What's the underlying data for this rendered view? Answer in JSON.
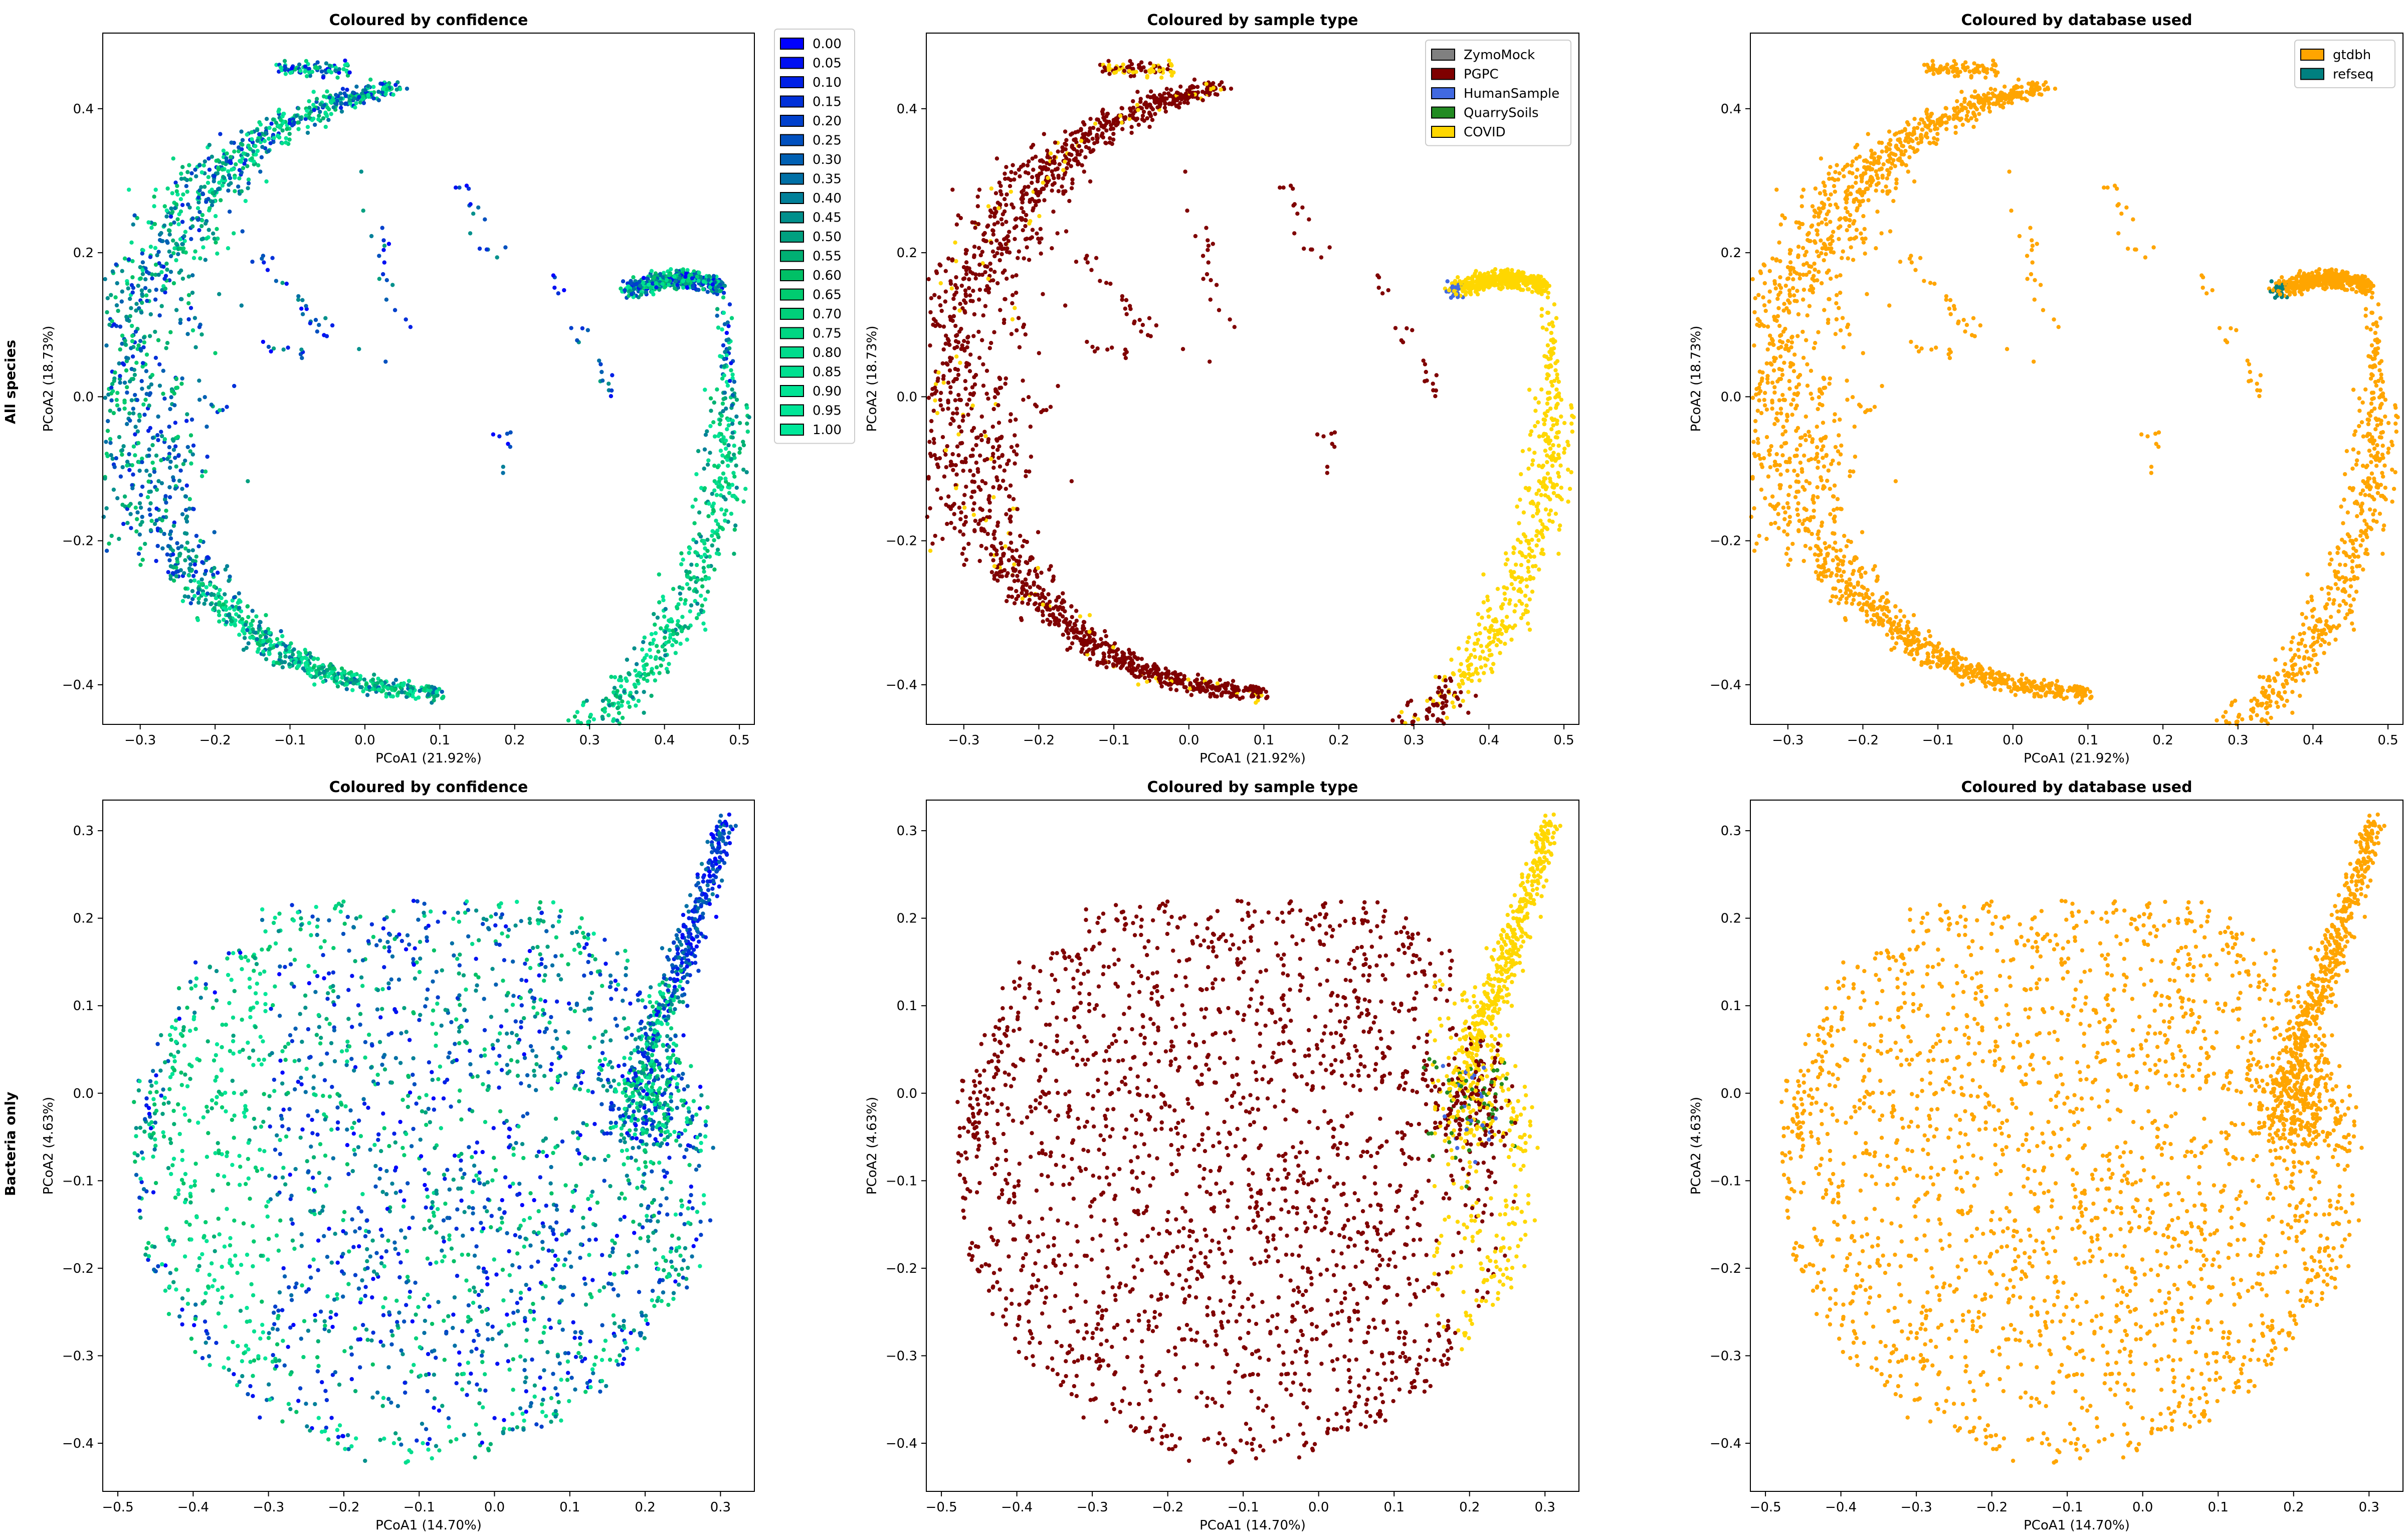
{
  "figure": {
    "row_labels": [
      "All species",
      "Bacteria only"
    ]
  },
  "legends": {
    "confidence": {
      "labels": [
        "0.00",
        "0.05",
        "0.10",
        "0.15",
        "0.20",
        "0.25",
        "0.30",
        "0.35",
        "0.40",
        "0.45",
        "0.50",
        "0.55",
        "0.60",
        "0.65",
        "0.70",
        "0.75",
        "0.80",
        "0.85",
        "0.90",
        "0.95",
        "1.00"
      ],
      "colors": [
        "#0000ff",
        "#0010f2",
        "#0020e6",
        "#0030d9",
        "#0040cc",
        "#0050bf",
        "#0060b3",
        "#0070a6",
        "#008099",
        "#00908c",
        "#00a080",
        "#00b073",
        "#00c066",
        "#00cc70",
        "#00d07a",
        "#00d683",
        "#00dc8c",
        "#00e090",
        "#00e394",
        "#00e697",
        "#00e89a"
      ]
    },
    "sample_type": {
      "labels": [
        "ZymoMock",
        "PGPC",
        "HumanSample",
        "QuarrySoils",
        "COVID"
      ],
      "colors": [
        "#808080",
        "#7f0000",
        "#4169e1",
        "#228b22",
        "#ffd700"
      ]
    },
    "database": {
      "labels": [
        "gtdbh",
        "refseq"
      ],
      "colors": [
        "#ffa500",
        "#008080"
      ]
    }
  },
  "chart_data": [
    {
      "type": "scatter",
      "row": 0,
      "col": 0,
      "color_by": "confidence",
      "title": "Coloured by confidence",
      "xlabel": "PCoA1 (21.92%)",
      "ylabel": "PCoA2 (18.73%)",
      "xlim": [
        -0.35,
        0.52
      ],
      "ylim": [
        -0.455,
        0.505
      ],
      "xticks": [
        -0.3,
        -0.2,
        -0.1,
        0.0,
        0.1,
        0.2,
        0.3,
        0.4,
        0.5
      ],
      "yticks": [
        -0.4,
        -0.2,
        0.0,
        0.2,
        0.4
      ],
      "xticklabels": [
        "−0.3",
        "−0.2",
        "−0.1",
        "0.0",
        "0.1",
        "0.2",
        "0.3",
        "0.4",
        "0.5"
      ],
      "yticklabels": [
        "−0.4",
        "−0.2",
        "0.0",
        "0.2",
        "0.4"
      ],
      "legend": "confidence",
      "legend_position": "outside-right",
      "grid": false
    },
    {
      "type": "scatter",
      "row": 0,
      "col": 1,
      "color_by": "sample_type",
      "title": "Coloured by sample type",
      "xlabel": "PCoA1 (21.92%)",
      "ylabel": "PCoA2 (18.73%)",
      "xlim": [
        -0.35,
        0.52
      ],
      "ylim": [
        -0.455,
        0.505
      ],
      "xticks": [
        -0.3,
        -0.2,
        -0.1,
        0.0,
        0.1,
        0.2,
        0.3,
        0.4,
        0.5
      ],
      "yticks": [
        -0.4,
        -0.2,
        0.0,
        0.2,
        0.4
      ],
      "xticklabels": [
        "−0.3",
        "−0.2",
        "−0.1",
        "0.0",
        "0.1",
        "0.2",
        "0.3",
        "0.4",
        "0.5"
      ],
      "yticklabels": [
        "−0.4",
        "−0.2",
        "0.0",
        "0.2",
        "0.4"
      ],
      "legend": "sample_type",
      "legend_position": "top-right",
      "grid": false
    },
    {
      "type": "scatter",
      "row": 0,
      "col": 2,
      "color_by": "database",
      "title": "Coloured by database used",
      "xlabel": "PCoA1 (21.92%)",
      "ylabel": "PCoA2 (18.73%)",
      "xlim": [
        -0.35,
        0.52
      ],
      "ylim": [
        -0.455,
        0.505
      ],
      "xticks": [
        -0.3,
        -0.2,
        -0.1,
        0.0,
        0.1,
        0.2,
        0.3,
        0.4,
        0.5
      ],
      "yticks": [
        -0.4,
        -0.2,
        0.0,
        0.2,
        0.4
      ],
      "xticklabels": [
        "−0.3",
        "−0.2",
        "−0.1",
        "0.0",
        "0.1",
        "0.2",
        "0.3",
        "0.4",
        "0.5"
      ],
      "yticklabels": [
        "−0.4",
        "−0.2",
        "0.0",
        "0.2",
        "0.4"
      ],
      "legend": "database",
      "legend_position": "top-right",
      "grid": false
    },
    {
      "type": "scatter",
      "row": 1,
      "col": 0,
      "color_by": "confidence",
      "title": "Coloured by confidence",
      "xlabel": "PCoA1 (14.70%)",
      "ylabel": "PCoA2 (4.63%)",
      "xlim": [
        -0.52,
        0.345
      ],
      "ylim": [
        -0.455,
        0.335
      ],
      "xticks": [
        -0.5,
        -0.4,
        -0.3,
        -0.2,
        -0.1,
        0.0,
        0.1,
        0.2,
        0.3
      ],
      "yticks": [
        -0.4,
        -0.3,
        -0.2,
        -0.1,
        0.0,
        0.1,
        0.2,
        0.3
      ],
      "xticklabels": [
        "−0.5",
        "−0.4",
        "−0.3",
        "−0.2",
        "−0.1",
        "0.0",
        "0.1",
        "0.2",
        "0.3"
      ],
      "yticklabels": [
        "−0.4",
        "−0.3",
        "−0.2",
        "−0.1",
        "0.0",
        "0.1",
        "0.2",
        "0.3"
      ],
      "legend": null,
      "grid": false
    },
    {
      "type": "scatter",
      "row": 1,
      "col": 1,
      "color_by": "sample_type",
      "title": "Coloured by sample type",
      "xlabel": "PCoA1 (14.70%)",
      "ylabel": "PCoA2 (4.63%)",
      "xlim": [
        -0.52,
        0.345
      ],
      "ylim": [
        -0.455,
        0.335
      ],
      "xticks": [
        -0.5,
        -0.4,
        -0.3,
        -0.2,
        -0.1,
        0.0,
        0.1,
        0.2,
        0.3
      ],
      "yticks": [
        -0.4,
        -0.3,
        -0.2,
        -0.1,
        0.0,
        0.1,
        0.2,
        0.3
      ],
      "xticklabels": [
        "−0.5",
        "−0.4",
        "−0.3",
        "−0.2",
        "−0.1",
        "0.0",
        "0.1",
        "0.2",
        "0.3"
      ],
      "yticklabels": [
        "−0.4",
        "−0.3",
        "−0.2",
        "−0.1",
        "0.0",
        "0.1",
        "0.2",
        "0.3"
      ],
      "legend": null,
      "grid": false
    },
    {
      "type": "scatter",
      "row": 1,
      "col": 2,
      "color_by": "database",
      "title": "Coloured by database used",
      "xlabel": "PCoA1 (14.70%)",
      "ylabel": "PCoA2 (4.63%)",
      "xlim": [
        -0.52,
        0.345
      ],
      "ylim": [
        -0.455,
        0.335
      ],
      "xticks": [
        -0.5,
        -0.4,
        -0.3,
        -0.2,
        -0.1,
        0.0,
        0.1,
        0.2,
        0.3
      ],
      "yticks": [
        -0.4,
        -0.3,
        -0.2,
        -0.1,
        0.0,
        0.1,
        0.2,
        0.3
      ],
      "xticklabels": [
        "−0.5",
        "−0.4",
        "−0.3",
        "−0.2",
        "−0.1",
        "0.0",
        "0.1",
        "0.2",
        "0.3"
      ],
      "yticklabels": [
        "−0.4",
        "−0.3",
        "−0.2",
        "−0.1",
        "0.0",
        "0.1",
        "0.2",
        "0.3"
      ],
      "legend": null,
      "grid": false
    }
  ]
}
